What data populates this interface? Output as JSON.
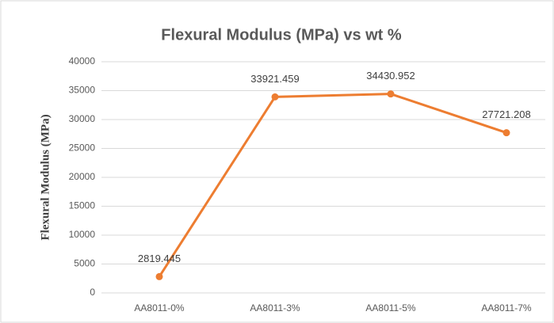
{
  "chart_data": {
    "type": "line",
    "title": "Flexural Modulus (MPa)  vs wt %",
    "y_label": "Flexural Modulus (MPa)",
    "categories": [
      "AA8011-0%",
      "AA8011-3%",
      "AA8011-5%",
      "AA8011-7%"
    ],
    "series": [
      {
        "name": "Flexural Modulus (MPa)",
        "color": "#ed7d31",
        "values": [
          2819.445,
          33921.459,
          34430.952,
          27721.208
        ]
      }
    ],
    "ylim": [
      0,
      40000
    ],
    "yticks": [
      0,
      5000,
      10000,
      15000,
      20000,
      25000,
      30000,
      35000,
      40000
    ],
    "grid": true
  }
}
